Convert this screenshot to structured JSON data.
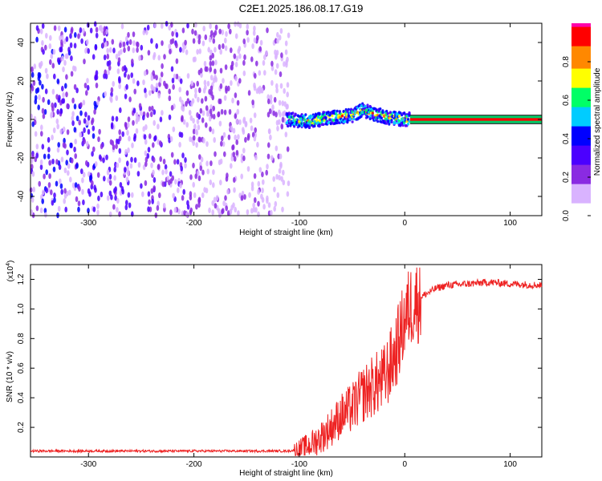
{
  "title": "C2E1.2025.186.08.17.G19",
  "chart_data": [
    {
      "type": "heatmap",
      "xlabel": "Height of straight line (km)",
      "ylabel": "Frequency (Hz)",
      "xlim": [
        -355,
        130
      ],
      "ylim": [
        -50,
        50
      ],
      "xticks": [
        -300,
        -200,
        -100,
        0,
        100
      ],
      "yticks": [
        -40,
        -20,
        0,
        20,
        40
      ],
      "colorbar": {
        "label": "Normalized spectral amplitude",
        "range": [
          0.0,
          1.0
        ],
        "ticks": [
          0.0,
          0.2,
          0.4,
          0.6,
          0.8
        ],
        "tick_labels": [
          "0.0",
          "0.2",
          "0.4",
          "0.6",
          "0.8"
        ],
        "colors": [
          "#ffffff",
          "#d9b3ff",
          "#8a2be2",
          "#4b00ff",
          "#0000ff",
          "#00ccff",
          "#00ff66",
          "#ffff00",
          "#ff8800",
          "#ff0000",
          "#ff00aa"
        ]
      },
      "regions": [
        {
          "desc": "broadband noise",
          "x": [
            -355,
            -110
          ],
          "freq": [
            -50,
            50
          ],
          "amplitude": [
            0.0,
            0.25
          ]
        },
        {
          "desc": "signal band",
          "x": [
            -112,
            5
          ],
          "center_freq": [
            [
              -110,
              0
            ],
            [
              -90,
              -1
            ],
            [
              -70,
              1
            ],
            [
              -50,
              2
            ],
            [
              -40,
              5
            ],
            [
              -30,
              3
            ],
            [
              -15,
              1
            ],
            [
              0,
              0
            ],
            [
              5,
              0
            ]
          ],
          "amplitude": [
            0.3,
            0.9
          ]
        },
        {
          "desc": "steady signal line",
          "x": [
            5,
            130
          ],
          "freq": 0,
          "amplitude": 0.9
        }
      ]
    },
    {
      "type": "line",
      "xlabel": "Height of straight line (km)",
      "ylabel": "SNR (10 * v/v)",
      "y_multiplier": "(x10",
      "y_multiplier_exp": "4",
      "y_multiplier_close": ")",
      "xlim": [
        -355,
        130
      ],
      "ylim": [
        0,
        1.3
      ],
      "xticks": [
        -300,
        -200,
        -100,
        0,
        100
      ],
      "yticks": [
        0.2,
        0.4,
        0.6,
        0.8,
        1.0,
        1.2
      ],
      "line_color": "#ee2222",
      "series": [
        {
          "x": [
            -355,
            -300,
            -250,
            -200,
            -150,
            -110,
            -100,
            -90,
            -80,
            -70,
            -60,
            -50,
            -40,
            -30,
            -20,
            -15,
            -10,
            -5,
            0,
            5,
            10,
            15,
            20,
            25,
            30,
            40,
            60,
            80,
            100,
            130
          ],
          "values": [
            0.04,
            0.04,
            0.04,
            0.04,
            0.04,
            0.04,
            0.05,
            0.08,
            0.13,
            0.2,
            0.28,
            0.33,
            0.42,
            0.48,
            0.52,
            0.6,
            0.68,
            0.8,
            0.93,
            1.02,
            1.05,
            1.08,
            1.1,
            1.12,
            1.14,
            1.16,
            1.17,
            1.18,
            1.17,
            1.16
          ]
        }
      ]
    }
  ]
}
